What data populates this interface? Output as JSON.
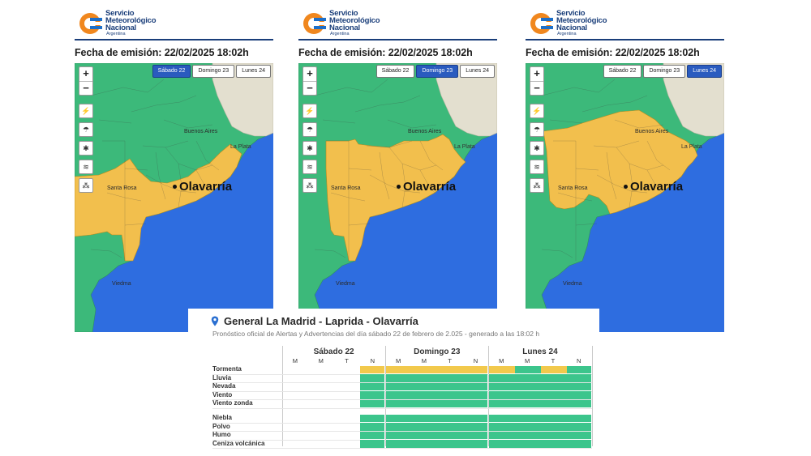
{
  "brand": {
    "line1": "Servicio",
    "line2": "Meteorológico",
    "line3": "Nacional",
    "line4": "Argentina"
  },
  "panels": [
    {
      "emission": "Fecha de emisión: 22/02/2025 18:02h",
      "active_tab": 0,
      "scenario": "sat"
    },
    {
      "emission": "Fecha de emisión: 22/02/2025 18:02h",
      "active_tab": 1,
      "scenario": "sun"
    },
    {
      "emission": "Fecha de emisión: 22/02/2025 18:02h",
      "active_tab": 2,
      "scenario": "mon"
    }
  ],
  "day_tabs": [
    "Sábado 22",
    "Domingo 23",
    "Lunes 24"
  ],
  "zoom": {
    "in": "+",
    "out": "−"
  },
  "map_labels": {
    "buenos_aires": "Buenos Aires",
    "la_plata": "La Plata",
    "santa_rosa": "Santa Rosa",
    "viedma": "Viedma",
    "olavarria": "Olavarría"
  },
  "tool_icons": [
    "storm-icon",
    "rain-icon",
    "snow-icon",
    "wind-icon",
    "dust-icon"
  ],
  "colors": {
    "sea": "#2e6de0",
    "green": "#3cb97a",
    "yellow": "#f2bf4d",
    "foreign": "#e3dfcf",
    "accent": "#1a3e7a",
    "tab_active": "#2a5bbf",
    "cell_green": "#3cc58c",
    "cell_yellow": "#f2c94c"
  },
  "forecast": {
    "title": "General La Madrid - Laprida - Olavarría",
    "subtitle": "Pronóstico oficial de Alertas y Advertencias del día sábado 22 de febrero de 2.025 - generado a las 18:02 h",
    "days": [
      {
        "label": "Sábado 22",
        "periods": [
          "M",
          "M",
          "T",
          "N"
        ]
      },
      {
        "label": "Domingo 23",
        "periods": [
          "M",
          "M",
          "T",
          "N"
        ]
      },
      {
        "label": "Lunes 24",
        "periods": [
          "M",
          "M",
          "T",
          "N"
        ]
      }
    ],
    "groups": [
      {
        "rows": [
          {
            "label": "Tormenta",
            "levels": [
              "none",
              "none",
              "none",
              "yellow",
              "yellow",
              "yellow",
              "yellow",
              "yellow",
              "yellow",
              "green",
              "yellow",
              "green"
            ]
          },
          {
            "label": "Lluvia",
            "levels": [
              "none",
              "none",
              "none",
              "green",
              "green",
              "green",
              "green",
              "green",
              "green",
              "green",
              "green",
              "green"
            ]
          },
          {
            "label": "Nevada",
            "levels": [
              "none",
              "none",
              "none",
              "green",
              "green",
              "green",
              "green",
              "green",
              "green",
              "green",
              "green",
              "green"
            ]
          },
          {
            "label": "Viento",
            "levels": [
              "none",
              "none",
              "none",
              "green",
              "green",
              "green",
              "green",
              "green",
              "green",
              "green",
              "green",
              "green"
            ]
          },
          {
            "label": "Viento zonda",
            "levels": [
              "none",
              "none",
              "none",
              "green",
              "green",
              "green",
              "green",
              "green",
              "green",
              "green",
              "green",
              "green"
            ]
          }
        ]
      },
      {
        "rows": [
          {
            "label": "Niebla",
            "levels": [
              "none",
              "none",
              "none",
              "green",
              "green",
              "green",
              "green",
              "green",
              "green",
              "green",
              "green",
              "green"
            ]
          },
          {
            "label": "Polvo",
            "levels": [
              "none",
              "none",
              "none",
              "green",
              "green",
              "green",
              "green",
              "green",
              "green",
              "green",
              "green",
              "green"
            ]
          },
          {
            "label": "Humo",
            "levels": [
              "none",
              "none",
              "none",
              "green",
              "green",
              "green",
              "green",
              "green",
              "green",
              "green",
              "green",
              "green"
            ]
          },
          {
            "label": "Ceniza volcánica",
            "levels": [
              "none",
              "none",
              "none",
              "green",
              "green",
              "green",
              "green",
              "green",
              "green",
              "green",
              "green",
              "green"
            ]
          }
        ]
      }
    ]
  }
}
